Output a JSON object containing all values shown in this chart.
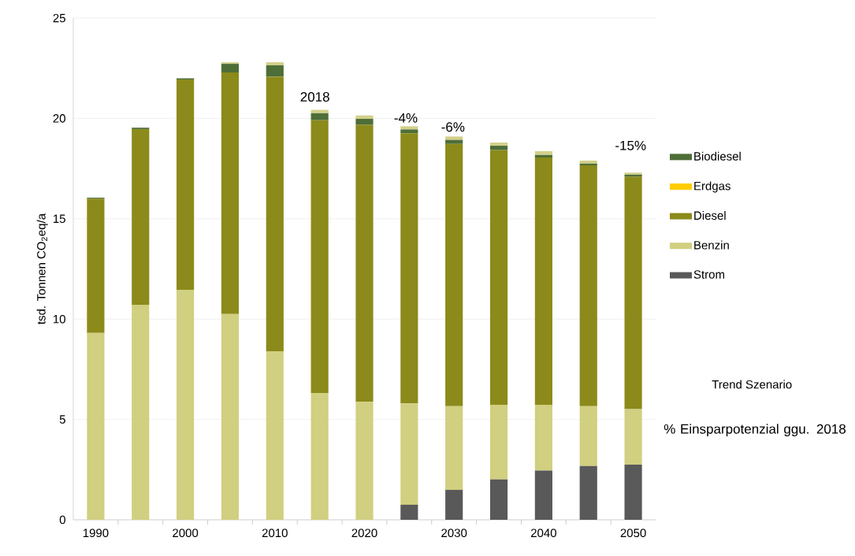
{
  "chart_data": {
    "type": "bar",
    "stacked": true,
    "ylabel": "tsd. Tonnen CO$_{2}$eq/a",
    "x": [
      1990,
      1995,
      2000,
      2005,
      2010,
      2015,
      2020,
      2025,
      2030,
      2035,
      2040,
      2045,
      2050
    ],
    "xlim": [
      1987.5,
      2052.5
    ],
    "xticks": [
      1990,
      2000,
      2010,
      2020,
      2030,
      2040,
      2050,
      {
        "value": 1992.5,
        "label": null
      },
      {
        "value": 1997.5,
        "label": null
      },
      {
        "value": 2002.5,
        "label": null
      },
      {
        "value": 2007.5,
        "label": null
      },
      {
        "value": 2012.5,
        "label": null
      },
      {
        "value": 2017.5,
        "label": null
      },
      {
        "value": 2022.5,
        "label": null
      },
      {
        "value": 2027.5,
        "label": null
      },
      {
        "value": 2032.5,
        "label": null
      },
      {
        "value": 2037.5,
        "label": null
      },
      {
        "value": 2042.5,
        "label": null
      },
      {
        "value": 2047.5,
        "label": null
      }
    ],
    "ylim": [
      0,
      25
    ],
    "yticks": [
      0,
      5,
      10,
      15,
      20,
      25
    ],
    "grid": "y",
    "legend": "right",
    "series": [
      {
        "name": "Strom",
        "color": "#595959",
        "values": [
          0,
          0,
          0,
          0,
          0,
          0,
          0,
          0.75,
          1.49,
          2.01,
          2.45,
          2.68,
          2.75
        ]
      },
      {
        "name": "Benzin",
        "color": "#d1cf80",
        "values": [
          9.31,
          10.71,
          11.46,
          10.25,
          8.4,
          6.32,
          5.88,
          5.05,
          4.17,
          3.72,
          3.28,
          2.98,
          2.76
        ]
      },
      {
        "name": "Diesel",
        "color": "#8c8a1a",
        "values": [
          6.69,
          8.76,
          10.48,
          12.04,
          13.68,
          13.59,
          13.8,
          13.46,
          13.07,
          12.69,
          12.32,
          12.0,
          11.59
        ]
      },
      {
        "name": "Erdgas",
        "color": "#ffcc00",
        "values": [
          0,
          0,
          0,
          0,
          0,
          0,
          0,
          0,
          0,
          0,
          0,
          0,
          0
        ]
      },
      {
        "name": "Biodiesel",
        "color": "#4e6e38",
        "values": [
          0.05,
          0.07,
          0.06,
          0.43,
          0.57,
          0.35,
          0.3,
          0.19,
          0.2,
          0.22,
          0.13,
          0.09,
          0.1
        ]
      },
      {
        "color": "#d3d08a",
        "values": [
          0,
          0,
          0,
          0.08,
          0.15,
          0.17,
          0.17,
          0.16,
          0.17,
          0.16,
          0.19,
          0.15,
          0.1
        ]
      }
    ],
    "annotations": [
      "2018",
      "-4%",
      "-6%",
      "-15%",
      "Trend Szenario",
      "% Einsparpotenzial ggu. 2018"
    ]
  }
}
